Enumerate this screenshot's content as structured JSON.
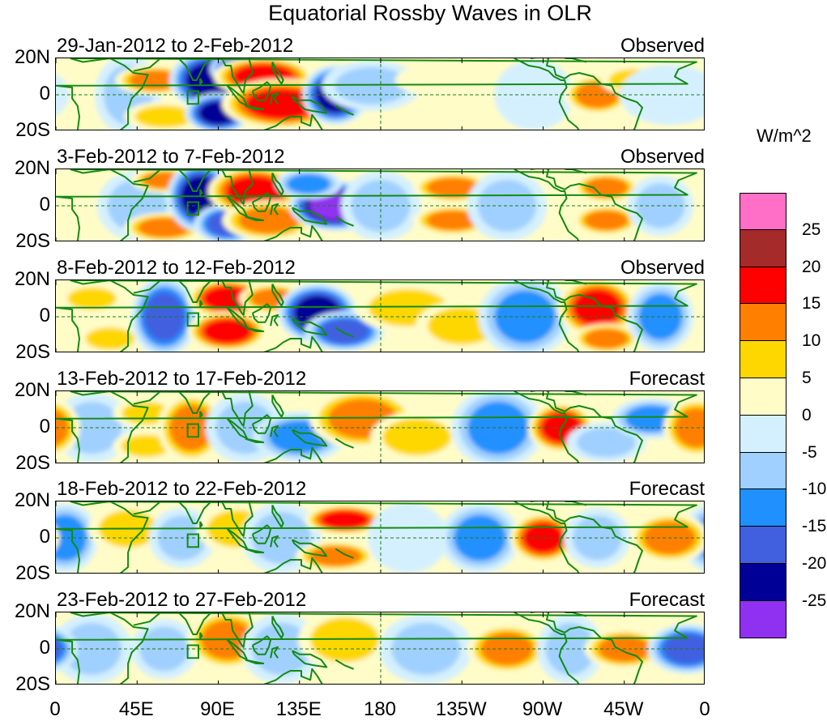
{
  "title": "Equatorial Rossby Waves in OLR",
  "legend": {
    "unit": "W/m^2",
    "labels": [
      "25",
      "20",
      "15",
      "10",
      "5",
      "0",
      "-5",
      "-10",
      "-15",
      "-20",
      "-25"
    ],
    "colors": [
      "#ff6ec7",
      "#a52a2a",
      "#ff0000",
      "#ff7f00",
      "#ffd700",
      "#fffcc8",
      "#d4f0ff",
      "#a0d0ff",
      "#2090ff",
      "#4060e0",
      "#000096",
      "#9030f0"
    ]
  },
  "lat_labels": [
    "20N",
    "0",
    "20S"
  ],
  "lon_labels": [
    "0",
    "45E",
    "90E",
    "135E",
    "180",
    "135W",
    "90W",
    "45W",
    "0"
  ],
  "panels": [
    {
      "date": "29-Jan-2012 to 2-Feb-2012",
      "status": "Observed",
      "blobs": [
        {
          "lon": 40,
          "lat": 0,
          "rx": 10,
          "ry": 16,
          "v": -8
        },
        {
          "lon": 55,
          "lat": 8,
          "rx": 12,
          "ry": 6,
          "v": 12
        },
        {
          "lon": 60,
          "lat": -12,
          "rx": 12,
          "ry": 6,
          "v": 9
        },
        {
          "lon": 85,
          "lat": 8,
          "rx": 12,
          "ry": 12,
          "v": -23
        },
        {
          "lon": 90,
          "lat": -10,
          "rx": 10,
          "ry": 8,
          "v": -22
        },
        {
          "lon": 100,
          "lat": 14,
          "rx": 8,
          "ry": 6,
          "v": -20
        },
        {
          "lon": 115,
          "lat": 10,
          "rx": 15,
          "ry": 8,
          "v": 17
        },
        {
          "lon": 125,
          "lat": -5,
          "rx": 18,
          "ry": 10,
          "v": 18
        },
        {
          "lon": 155,
          "lat": 0,
          "rx": 10,
          "ry": 12,
          "v": -21
        },
        {
          "lon": 175,
          "lat": 5,
          "rx": 15,
          "ry": 10,
          "v": -6
        },
        {
          "lon": -150,
          "lat": 8,
          "rx": 12,
          "ry": 6,
          "v": 4
        },
        {
          "lon": -120,
          "lat": -10,
          "rx": 14,
          "ry": 6,
          "v": 3
        },
        {
          "lon": -95,
          "lat": 0,
          "rx": 12,
          "ry": 14,
          "v": -4
        },
        {
          "lon": -60,
          "lat": 0,
          "rx": 10,
          "ry": 8,
          "v": 10
        },
        {
          "lon": -40,
          "lat": 8,
          "rx": 10,
          "ry": 6,
          "v": 6
        },
        {
          "lon": -20,
          "lat": 0,
          "rx": 15,
          "ry": 12,
          "v": -3
        }
      ]
    },
    {
      "date": "3-Feb-2012 to 7-Feb-2012",
      "status": "Observed",
      "blobs": [
        {
          "lon": 45,
          "lat": 0,
          "rx": 12,
          "ry": 14,
          "v": -5
        },
        {
          "lon": 60,
          "lat": -12,
          "rx": 12,
          "ry": 6,
          "v": 10
        },
        {
          "lon": 60,
          "lat": 14,
          "rx": 10,
          "ry": 5,
          "v": 12
        },
        {
          "lon": 80,
          "lat": 5,
          "rx": 10,
          "ry": 14,
          "v": -20
        },
        {
          "lon": 95,
          "lat": -10,
          "rx": 10,
          "ry": 8,
          "v": -16
        },
        {
          "lon": 110,
          "lat": 8,
          "rx": 14,
          "ry": 10,
          "v": 16
        },
        {
          "lon": 118,
          "lat": -8,
          "rx": 14,
          "ry": 8,
          "v": 14
        },
        {
          "lon": 155,
          "lat": 0,
          "rx": 14,
          "ry": 10,
          "v": -26
        },
        {
          "lon": 140,
          "lat": 12,
          "rx": 10,
          "ry": 6,
          "v": -12
        },
        {
          "lon": 180,
          "lat": 0,
          "rx": 12,
          "ry": 14,
          "v": -7
        },
        {
          "lon": -140,
          "lat": 10,
          "rx": 12,
          "ry": 6,
          "v": 10
        },
        {
          "lon": -140,
          "lat": -8,
          "rx": 12,
          "ry": 6,
          "v": 10
        },
        {
          "lon": -110,
          "lat": 0,
          "rx": 12,
          "ry": 14,
          "v": -8
        },
        {
          "lon": -55,
          "lat": 10,
          "rx": 10,
          "ry": 6,
          "v": 14
        },
        {
          "lon": -55,
          "lat": -8,
          "rx": 10,
          "ry": 6,
          "v": 14
        },
        {
          "lon": -25,
          "lat": 0,
          "rx": 10,
          "ry": 12,
          "v": -9
        }
      ]
    },
    {
      "date": "8-Feb-2012 to 12-Feb-2012",
      "status": "Observed",
      "blobs": [
        {
          "lon": 20,
          "lat": 10,
          "rx": 10,
          "ry": 6,
          "v": 8
        },
        {
          "lon": 30,
          "lat": -12,
          "rx": 10,
          "ry": 6,
          "v": 9
        },
        {
          "lon": 60,
          "lat": 0,
          "rx": 10,
          "ry": 16,
          "v": -18
        },
        {
          "lon": 95,
          "lat": 10,
          "rx": 12,
          "ry": 8,
          "v": 16
        },
        {
          "lon": 95,
          "lat": -8,
          "rx": 12,
          "ry": 8,
          "v": 15
        },
        {
          "lon": 120,
          "lat": 10,
          "rx": 10,
          "ry": 6,
          "v": 12
        },
        {
          "lon": 145,
          "lat": 2,
          "rx": 12,
          "ry": 12,
          "v": -23
        },
        {
          "lon": 160,
          "lat": -8,
          "rx": 12,
          "ry": 8,
          "v": -18
        },
        {
          "lon": -165,
          "lat": 5,
          "rx": 16,
          "ry": 10,
          "v": 7
        },
        {
          "lon": -135,
          "lat": -5,
          "rx": 14,
          "ry": 10,
          "v": 6
        },
        {
          "lon": -100,
          "lat": 0,
          "rx": 14,
          "ry": 16,
          "v": -12
        },
        {
          "lon": -60,
          "lat": 5,
          "rx": 12,
          "ry": 12,
          "v": 15
        },
        {
          "lon": -55,
          "lat": -12,
          "rx": 10,
          "ry": 6,
          "v": 12
        },
        {
          "lon": -25,
          "lat": 0,
          "rx": 10,
          "ry": 14,
          "v": -12
        }
      ]
    },
    {
      "date": "13-Feb-2012 to 17-Feb-2012",
      "status": "Forecast",
      "blobs": [
        {
          "lon": 20,
          "lat": 0,
          "rx": 12,
          "ry": 14,
          "v": -5
        },
        {
          "lon": 50,
          "lat": 8,
          "rx": 10,
          "ry": 6,
          "v": 9
        },
        {
          "lon": 50,
          "lat": -10,
          "rx": 10,
          "ry": 6,
          "v": 8
        },
        {
          "lon": 75,
          "lat": 0,
          "rx": 10,
          "ry": 14,
          "v": 14
        },
        {
          "lon": 105,
          "lat": 0,
          "rx": 12,
          "ry": 14,
          "v": -8
        },
        {
          "lon": 135,
          "lat": -5,
          "rx": 14,
          "ry": 10,
          "v": -12
        },
        {
          "lon": 170,
          "lat": 5,
          "rx": 16,
          "ry": 12,
          "v": 13
        },
        {
          "lon": -160,
          "lat": -5,
          "rx": 14,
          "ry": 10,
          "v": 8
        },
        {
          "lon": -115,
          "lat": 0,
          "rx": 14,
          "ry": 16,
          "v": -14
        },
        {
          "lon": -80,
          "lat": 0,
          "rx": 10,
          "ry": 10,
          "v": 18
        },
        {
          "lon": -55,
          "lat": -8,
          "rx": 12,
          "ry": 8,
          "v": -8
        },
        {
          "lon": -30,
          "lat": 5,
          "rx": 12,
          "ry": 8,
          "v": -10
        },
        {
          "lon": -5,
          "lat": 0,
          "rx": 10,
          "ry": 12,
          "v": 10
        }
      ]
    },
    {
      "date": "18-Feb-2012 to 22-Feb-2012",
      "status": "Forecast",
      "blobs": [
        {
          "lon": 5,
          "lat": 0,
          "rx": 10,
          "ry": 14,
          "v": -11
        },
        {
          "lon": 40,
          "lat": 5,
          "rx": 12,
          "ry": 10,
          "v": 6
        },
        {
          "lon": 70,
          "lat": 0,
          "rx": 10,
          "ry": 12,
          "v": -6
        },
        {
          "lon": 100,
          "lat": 5,
          "rx": 12,
          "ry": 10,
          "v": 6
        },
        {
          "lon": 125,
          "lat": 0,
          "rx": 12,
          "ry": 14,
          "v": -9
        },
        {
          "lon": 160,
          "lat": 10,
          "rx": 12,
          "ry": 6,
          "v": 15
        },
        {
          "lon": 155,
          "lat": -10,
          "rx": 12,
          "ry": 6,
          "v": 14
        },
        {
          "lon": -165,
          "lat": 0,
          "rx": 12,
          "ry": 14,
          "v": -4
        },
        {
          "lon": -125,
          "lat": 0,
          "rx": 12,
          "ry": 14,
          "v": -12
        },
        {
          "lon": -90,
          "lat": 0,
          "rx": 10,
          "ry": 10,
          "v": 17
        },
        {
          "lon": -60,
          "lat": 0,
          "rx": 10,
          "ry": 12,
          "v": -6
        },
        {
          "lon": -20,
          "lat": 0,
          "rx": 12,
          "ry": 10,
          "v": 10
        }
      ]
    },
    {
      "date": "23-Feb-2012 to 27-Feb-2012",
      "status": "Forecast",
      "blobs": [
        {
          "lon": 20,
          "lat": 0,
          "rx": 12,
          "ry": 14,
          "v": -5
        },
        {
          "lon": 60,
          "lat": 0,
          "rx": 10,
          "ry": 12,
          "v": -8
        },
        {
          "lon": 95,
          "lat": 5,
          "rx": 12,
          "ry": 12,
          "v": 10
        },
        {
          "lon": 125,
          "lat": 0,
          "rx": 12,
          "ry": 14,
          "v": -8
        },
        {
          "lon": 160,
          "lat": 5,
          "rx": 14,
          "ry": 12,
          "v": 8
        },
        {
          "lon": -155,
          "lat": 0,
          "rx": 14,
          "ry": 14,
          "v": -9
        },
        {
          "lon": -110,
          "lat": 0,
          "rx": 12,
          "ry": 10,
          "v": 10
        },
        {
          "lon": -75,
          "lat": 0,
          "rx": 10,
          "ry": 14,
          "v": -7
        },
        {
          "lon": -45,
          "lat": 0,
          "rx": 12,
          "ry": 8,
          "v": 11
        },
        {
          "lon": -10,
          "lat": 0,
          "rx": 12,
          "ry": 10,
          "v": -18
        }
      ]
    }
  ]
}
